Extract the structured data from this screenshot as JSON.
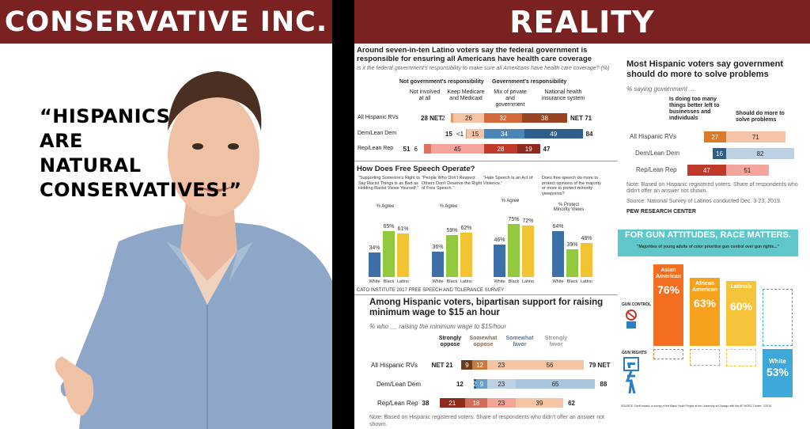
{
  "banners": {
    "left": "CONSERVATIVE INC.",
    "right": "REALITY"
  },
  "quote": [
    "“HISPANICS",
    "ARE",
    "NATURAL",
    "CONSERVATIVES!”"
  ],
  "colors": {
    "banner": "#7a2222",
    "blue": "#3d6fa8",
    "green": "#93c93f",
    "yellow": "#f2c434",
    "orange": "#f08a2a",
    "teal": "#5fc7c9"
  },
  "chart_data": [
    {
      "type": "bar",
      "title": "Around seven-in-ten Latino voters say the federal government is responsible for ensuring all Americans have health care coverage",
      "subtitle": "Is it the federal government's responsibility to make sure all Americans have health care coverage? (%)",
      "group_headers": [
        "Not government's responsibility",
        "Government's responsibility"
      ],
      "column_headers": [
        "Not involved at all",
        "Keep Medicare and Medicaid",
        "Mix of private and government",
        "National health insurance system"
      ],
      "net_label": "NET",
      "rows": [
        {
          "label": "All Hispanic RVs",
          "net_not": "28",
          "not_involved": "2",
          "keep": "26",
          "mix": "32",
          "national": "38",
          "net_gov": "71"
        },
        {
          "label": "Dem/Lean Dem",
          "net_not": "15",
          "not_involved": "<1",
          "keep": "15",
          "mix": "34",
          "national": "49",
          "net_gov": "84"
        },
        {
          "label": "Rep/Lean Rep",
          "net_not": "51",
          "not_involved": "6",
          "keep": "45",
          "mix": "28",
          "national": "19",
          "net_gov": "47"
        }
      ]
    },
    {
      "type": "bar",
      "title": "How Does Free Speech Operate?",
      "groups": [
        {
          "question": "“Supporting Someone's Right to Say Racist Things is as Bad as Holding Racist Views Yourself.”",
          "ylabel": "% Agree",
          "values": [
            34,
            65,
            61
          ],
          "labels": [
            "34%",
            "65%",
            "61%"
          ]
        },
        {
          "question": "“People Who Don't Respect Others Don't Deserve the Right of Free Speech.”",
          "ylabel": "% Agree",
          "values": [
            36,
            59,
            62
          ],
          "labels": [
            "36%",
            "59%",
            "62%"
          ]
        },
        {
          "question": "“Hate Speech Is an Act of Violence.”",
          "ylabel": "% Agree",
          "values": [
            46,
            75,
            72
          ],
          "labels": [
            "46%",
            "75%",
            "72%"
          ]
        },
        {
          "question": "Does free speech do more to protect opinions of the majority or more to protect minority viewpoints?",
          "ylabel": "% Protect Minority Views",
          "values": [
            64,
            39,
            48
          ],
          "labels": [
            "64%",
            "39%",
            "48%"
          ]
        }
      ],
      "categories": [
        "White",
        "Black",
        "Latino"
      ],
      "source": "CATO INSTITUTE 2017 FREE SPEECH AND TOLERANCE SURVEY"
    },
    {
      "type": "bar",
      "title": "Among Hispanic voters, bipartisan support for raising minimum wage to $15 an hour",
      "subtitle": "% who __ raising the minimum wage to $15/hour",
      "columns": [
        "Strongly oppose",
        "Somewhat oppose",
        "Somewhat favor",
        "Strongly favor"
      ],
      "rows": [
        {
          "label": "All Hispanic RVs",
          "net_oppose": "21",
          "strongly_oppose": "9",
          "somewhat_oppose": "12",
          "somewhat_favor": "23",
          "strongly_favor": "56",
          "net_favor": "79",
          "net_oppose_label": "NET",
          "net_favor_label": "NET"
        },
        {
          "label": "Dem/Lean Dem",
          "net_oppose": "12",
          "strongly_oppose": "2",
          "somewhat_oppose": "9",
          "somewhat_favor": "23",
          "strongly_favor": "65",
          "net_favor": "88"
        },
        {
          "label": "Rep/Lean Rep",
          "net_oppose": "38",
          "strongly_oppose": "21",
          "somewhat_oppose": "18",
          "somewhat_favor": "23",
          "strongly_favor": "39",
          "net_favor": "62"
        }
      ],
      "note": "Note: Based on Hispanic registered voters. Share of respondents who didn't offer an answer not shown."
    },
    {
      "type": "bar",
      "title": "Most Hispanic voters say government should do more to solve problems",
      "subtitle": "% saying government ...",
      "columns": [
        "Is doing too many things better left to businesses and individuals",
        "Should do more to solve problems"
      ],
      "rows": [
        {
          "label": "All Hispanic RVs",
          "too_many": 27,
          "do_more": 71
        },
        {
          "label": "Dem/Lean Dem",
          "too_many": 16,
          "do_more": 82
        },
        {
          "label": "Rep/Lean Rep",
          "too_many": 47,
          "do_more": 51
        }
      ],
      "note": "Note: Based on Hispanic registered voters. Share of respondents who didn't offer an answer not shown.",
      "source": "Source: National Survey of Latinos conducted Dec. 3-23, 2019.",
      "brand": "PEW RESEARCH CENTER"
    },
    {
      "type": "bar",
      "title": "FOR GUN ATTITUDES, RACE MATTERS.",
      "subtitle": "\"Majorities of young adults of color prioritize gun control over gun rights...\"",
      "row_labels": [
        "GUN CONTROL",
        "GUN RIGHTS"
      ],
      "groups": [
        {
          "name": "Asian American",
          "gun_control": 76,
          "label": "76%"
        },
        {
          "name": "African American",
          "gun_control": 63,
          "label": "63%"
        },
        {
          "name": "Latino/a",
          "gun_control": 60,
          "label": "60%"
        },
        {
          "name": "White",
          "gun_control": 53,
          "label": "53%"
        }
      ],
      "source": "SOURCE: GenForward, a survey of the Black Youth Project at the University of Chicago with the AP-NORC Center. 7/2018."
    }
  ]
}
